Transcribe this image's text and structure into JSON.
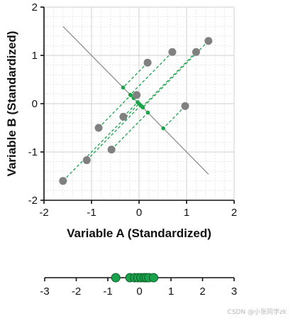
{
  "chart_data": [
    {
      "type": "scatter",
      "xlabel": "Variable A (Standardized)",
      "ylabel": "Variable B (Standardized)",
      "xlim": [
        -2,
        2
      ],
      "ylim": [
        -2,
        2
      ],
      "xticks": [
        "-2",
        "-1",
        "0",
        "1",
        "2"
      ],
      "yticks": [
        "2",
        "1",
        "0",
        "-1",
        "-2"
      ],
      "grid": true,
      "point_color": "#808080",
      "projection_color": "#1aa34a",
      "line_color": "#8a8a8a",
      "points": [
        {
          "x": -1.6,
          "y": -1.6
        },
        {
          "x": -1.1,
          "y": -1.17
        },
        {
          "x": -0.85,
          "y": -0.5
        },
        {
          "x": -0.58,
          "y": -0.95
        },
        {
          "x": -0.33,
          "y": -0.27
        },
        {
          "x": -0.05,
          "y": 0.18
        },
        {
          "x": 0.18,
          "y": 0.85
        },
        {
          "x": 0.7,
          "y": 1.07
        },
        {
          "x": 0.97,
          "y": -0.05
        },
        {
          "x": 1.2,
          "y": 1.07
        },
        {
          "x": 1.46,
          "y": 1.3
        }
      ],
      "line": {
        "x": [
          -1.6,
          1.46
        ],
        "y": [
          1.6,
          -1.46
        ]
      }
    },
    {
      "type": "scatter",
      "xlim": [
        -3,
        3
      ],
      "xticks": [
        "-3",
        "-2",
        "-1",
        "0",
        "1",
        "2",
        "3"
      ],
      "point_color": "#1aa34a",
      "values": [
        -0.75,
        -0.3,
        -0.15,
        -0.05,
        0.05,
        0.15,
        0.22,
        0.3,
        0.45
      ]
    }
  ],
  "watermark": "CSDN @小张同学zk"
}
